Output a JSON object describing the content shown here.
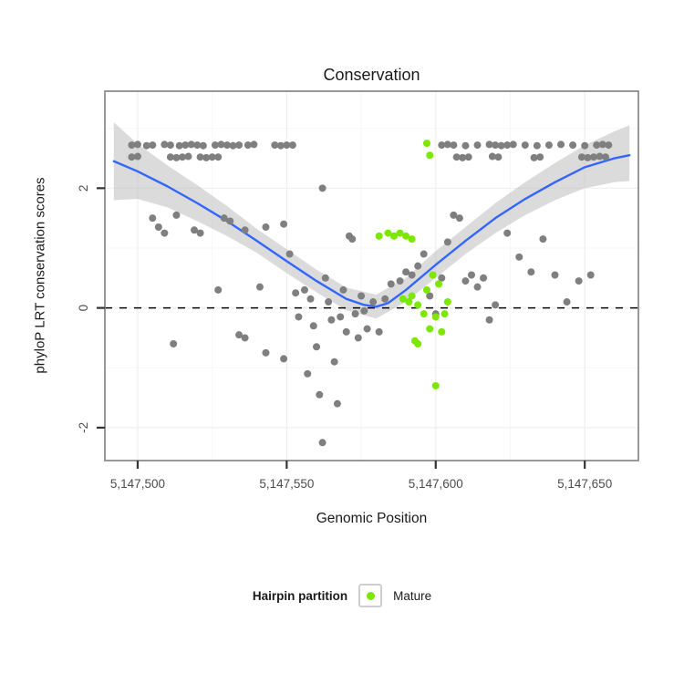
{
  "title": "Conservation",
  "axes": {
    "x": {
      "label": "Genomic Position",
      "range": [
        5147489,
        5147668
      ],
      "ticks": [
        {
          "value": 5147500,
          "label": "5,147,500"
        },
        {
          "value": 5147550,
          "label": "5,147,550"
        },
        {
          "value": 5147600,
          "label": "5,147,600"
        },
        {
          "value": 5147650,
          "label": "5,147,650"
        }
      ],
      "minor_ticks": [
        5147525,
        5147575,
        5147625
      ]
    },
    "y": {
      "label": "phyloP LRT conservation scores",
      "range": [
        -2.55,
        3.62
      ],
      "ticks": [
        {
          "value": -2,
          "label": "-2"
        },
        {
          "value": 0,
          "label": "0"
        },
        {
          "value": 2,
          "label": "2"
        }
      ],
      "minor_ticks": [
        -1,
        1,
        3
      ]
    }
  },
  "legend": {
    "title": "Hairpin partition",
    "entries": [
      {
        "label": "Mature",
        "color": "#7CE700"
      }
    ]
  },
  "colors": {
    "gray_points": "#7f7f7f",
    "mature_points": "#7CE700",
    "smooth_line": "#3366FF",
    "ribbon": "#b8b8b8",
    "panel_border": "#8c8c8c",
    "zero_line": "#000000"
  },
  "chart_data": {
    "type": "scatter",
    "title": "Conservation",
    "xlabel": "Genomic Position",
    "ylabel": "phyloP LRT conservation scores",
    "xlim": [
      5147489,
      5147668
    ],
    "ylim": [
      -2.55,
      3.62
    ],
    "grid": true,
    "legend_position": "bottom",
    "hline": {
      "y": 0,
      "style": "dashed",
      "color": "#000000"
    },
    "series": [
      {
        "name": "Other",
        "color": "#7f7f7f",
        "points": [
          [
            5147498,
            2.72
          ],
          [
            5147500,
            2.73
          ],
          [
            5147503,
            2.71
          ],
          [
            5147505,
            2.72
          ],
          [
            5147509,
            2.73
          ],
          [
            5147511,
            2.72
          ],
          [
            5147514,
            2.71
          ],
          [
            5147516,
            2.72
          ],
          [
            5147518,
            2.73
          ],
          [
            5147520,
            2.72
          ],
          [
            5147522,
            2.71
          ],
          [
            5147526,
            2.72
          ],
          [
            5147528,
            2.73
          ],
          [
            5147530,
            2.72
          ],
          [
            5147532,
            2.71
          ],
          [
            5147534,
            2.72
          ],
          [
            5147537,
            2.72
          ],
          [
            5147539,
            2.73
          ],
          [
            5147546,
            2.72
          ],
          [
            5147548,
            2.71
          ],
          [
            5147550,
            2.72
          ],
          [
            5147552,
            2.72
          ],
          [
            5147498,
            2.52
          ],
          [
            5147500,
            2.53
          ],
          [
            5147511,
            2.52
          ],
          [
            5147513,
            2.51
          ],
          [
            5147515,
            2.52
          ],
          [
            5147517,
            2.53
          ],
          [
            5147521,
            2.52
          ],
          [
            5147523,
            2.51
          ],
          [
            5147525,
            2.52
          ],
          [
            5147527,
            2.52
          ],
          [
            5147602,
            2.72
          ],
          [
            5147604,
            2.73
          ],
          [
            5147606,
            2.72
          ],
          [
            5147610,
            2.71
          ],
          [
            5147614,
            2.72
          ],
          [
            5147618,
            2.73
          ],
          [
            5147620,
            2.72
          ],
          [
            5147622,
            2.71
          ],
          [
            5147624,
            2.72
          ],
          [
            5147626,
            2.73
          ],
          [
            5147630,
            2.72
          ],
          [
            5147634,
            2.71
          ],
          [
            5147638,
            2.72
          ],
          [
            5147642,
            2.73
          ],
          [
            5147646,
            2.72
          ],
          [
            5147650,
            2.71
          ],
          [
            5147654,
            2.72
          ],
          [
            5147656,
            2.73
          ],
          [
            5147658,
            2.72
          ],
          [
            5147607,
            2.52
          ],
          [
            5147609,
            2.51
          ],
          [
            5147611,
            2.52
          ],
          [
            5147619,
            2.53
          ],
          [
            5147621,
            2.52
          ],
          [
            5147633,
            2.51
          ],
          [
            5147635,
            2.52
          ],
          [
            5147649,
            2.52
          ],
          [
            5147651,
            2.51
          ],
          [
            5147653,
            2.52
          ],
          [
            5147655,
            2.53
          ],
          [
            5147657,
            2.52
          ],
          [
            5147505,
            1.5
          ],
          [
            5147507,
            1.35
          ],
          [
            5147509,
            1.25
          ],
          [
            5147513,
            1.55
          ],
          [
            5147519,
            1.3
          ],
          [
            5147521,
            1.25
          ],
          [
            5147529,
            1.5
          ],
          [
            5147531,
            1.45
          ],
          [
            5147536,
            1.3
          ],
          [
            5147543,
            1.35
          ],
          [
            5147549,
            1.4
          ],
          [
            5147512,
            -0.6
          ],
          [
            5147527,
            0.3
          ],
          [
            5147534,
            -0.45
          ],
          [
            5147536,
            -0.5
          ],
          [
            5147541,
            0.35
          ],
          [
            5147543,
            -0.75
          ],
          [
            5147549,
            -0.85
          ],
          [
            5147551,
            0.9
          ],
          [
            5147553,
            0.25
          ],
          [
            5147554,
            -0.15
          ],
          [
            5147556,
            0.3
          ],
          [
            5147557,
            -1.1
          ],
          [
            5147558,
            0.15
          ],
          [
            5147559,
            -0.3
          ],
          [
            5147560,
            -0.65
          ],
          [
            5147561,
            -1.45
          ],
          [
            5147562,
            2.0
          ],
          [
            5147562,
            -2.25
          ],
          [
            5147563,
            0.5
          ],
          [
            5147564,
            0.1
          ],
          [
            5147565,
            -0.2
          ],
          [
            5147566,
            -0.9
          ],
          [
            5147567,
            -1.6
          ],
          [
            5147568,
            -0.15
          ],
          [
            5147569,
            0.3
          ],
          [
            5147570,
            -0.4
          ],
          [
            5147571,
            1.2
          ],
          [
            5147572,
            1.15
          ],
          [
            5147573,
            -0.1
          ],
          [
            5147574,
            -0.5
          ],
          [
            5147575,
            0.2
          ],
          [
            5147576,
            -0.05
          ],
          [
            5147577,
            -0.35
          ],
          [
            5147579,
            0.1
          ],
          [
            5147581,
            -0.4
          ],
          [
            5147583,
            0.15
          ],
          [
            5147585,
            0.4
          ],
          [
            5147588,
            0.45
          ],
          [
            5147590,
            0.6
          ],
          [
            5147592,
            0.55
          ],
          [
            5147594,
            0.7
          ],
          [
            5147596,
            0.9
          ],
          [
            5147598,
            0.2
          ],
          [
            5147600,
            -0.1
          ],
          [
            5147602,
            0.5
          ],
          [
            5147604,
            1.1
          ],
          [
            5147606,
            1.55
          ],
          [
            5147608,
            1.5
          ],
          [
            5147610,
            0.45
          ],
          [
            5147612,
            0.55
          ],
          [
            5147614,
            0.35
          ],
          [
            5147616,
            0.5
          ],
          [
            5147618,
            -0.2
          ],
          [
            5147620,
            0.05
          ],
          [
            5147624,
            1.25
          ],
          [
            5147628,
            0.85
          ],
          [
            5147632,
            0.6
          ],
          [
            5147636,
            1.15
          ],
          [
            5147640,
            0.55
          ],
          [
            5147644,
            0.1
          ],
          [
            5147648,
            0.45
          ],
          [
            5147652,
            0.55
          ]
        ]
      },
      {
        "name": "Mature",
        "color": "#7CE700",
        "points": [
          [
            5147597,
            2.75
          ],
          [
            5147598,
            2.55
          ],
          [
            5147581,
            1.2
          ],
          [
            5147584,
            1.25
          ],
          [
            5147586,
            1.2
          ],
          [
            5147588,
            1.25
          ],
          [
            5147590,
            1.2
          ],
          [
            5147592,
            1.15
          ],
          [
            5147589,
            0.15
          ],
          [
            5147591,
            0.1
          ],
          [
            5147592,
            0.2
          ],
          [
            5147594,
            0.05
          ],
          [
            5147596,
            -0.1
          ],
          [
            5147597,
            0.3
          ],
          [
            5147598,
            -0.35
          ],
          [
            5147599,
            0.55
          ],
          [
            5147600,
            -0.15
          ],
          [
            5147601,
            0.4
          ],
          [
            5147602,
            -0.4
          ],
          [
            5147603,
            -0.1
          ],
          [
            5147604,
            0.1
          ],
          [
            5147593,
            -0.55
          ],
          [
            5147594,
            -0.6
          ],
          [
            5147600,
            -1.3
          ]
        ]
      }
    ],
    "smooth": {
      "name": "loess fit",
      "color": "#3366FF",
      "points": [
        [
          5147492,
          2.45
        ],
        [
          5147500,
          2.28
        ],
        [
          5147510,
          2.03
        ],
        [
          5147520,
          1.75
        ],
        [
          5147530,
          1.45
        ],
        [
          5147540,
          1.12
        ],
        [
          5147550,
          0.78
        ],
        [
          5147560,
          0.45
        ],
        [
          5147570,
          0.15
        ],
        [
          5147576,
          0.05
        ],
        [
          5147580,
          0.02
        ],
        [
          5147584,
          0.08
        ],
        [
          5147590,
          0.3
        ],
        [
          5147600,
          0.72
        ],
        [
          5147610,
          1.12
        ],
        [
          5147620,
          1.5
        ],
        [
          5147630,
          1.82
        ],
        [
          5147640,
          2.1
        ],
        [
          5147650,
          2.35
        ],
        [
          5147660,
          2.5
        ],
        [
          5147665,
          2.55
        ]
      ]
    },
    "ribbon": {
      "name": "confidence band",
      "color": "#b8b8b8",
      "opacity": 0.5,
      "points": [
        [
          5147492,
          1.8,
          3.1
        ],
        [
          5147500,
          1.82,
          2.74
        ],
        [
          5147510,
          1.68,
          2.38
        ],
        [
          5147520,
          1.45,
          2.05
        ],
        [
          5147530,
          1.2,
          1.7
        ],
        [
          5147540,
          0.92,
          1.32
        ],
        [
          5147550,
          0.58,
          0.98
        ],
        [
          5147560,
          0.26,
          0.64
        ],
        [
          5147570,
          -0.04,
          0.34
        ],
        [
          5147580,
          -0.18,
          0.22
        ],
        [
          5147590,
          0.1,
          0.5
        ],
        [
          5147600,
          0.5,
          0.95
        ],
        [
          5147610,
          0.9,
          1.35
        ],
        [
          5147620,
          1.25,
          1.75
        ],
        [
          5147630,
          1.55,
          2.1
        ],
        [
          5147640,
          1.8,
          2.42
        ],
        [
          5147650,
          2.0,
          2.72
        ],
        [
          5147660,
          2.1,
          2.95
        ],
        [
          5147665,
          2.12,
          3.05
        ]
      ]
    }
  }
}
